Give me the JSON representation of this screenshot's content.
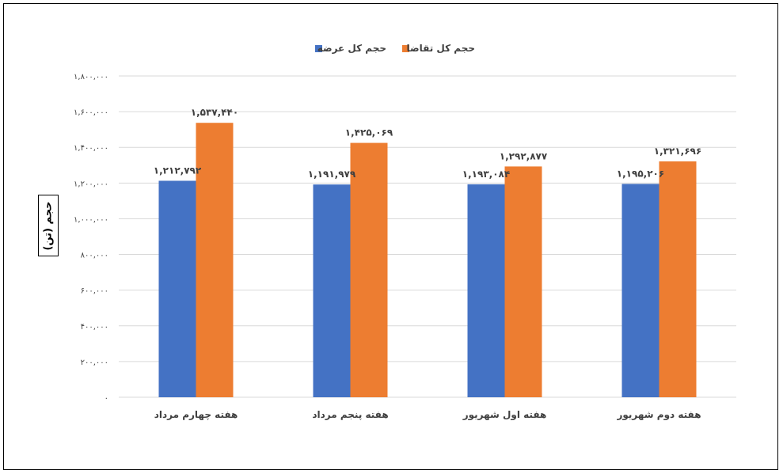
{
  "chart_data": {
    "type": "bar",
    "title": "",
    "xlabel": "",
    "ylabel": "حجم (تن)",
    "ylim": [
      0,
      1800000
    ],
    "yticks": [
      0,
      200000,
      400000,
      600000,
      800000,
      1000000,
      1200000,
      1400000,
      1600000,
      1800000
    ],
    "ytick_labels": [
      "۰",
      "۲۰۰,۰۰۰",
      "۴۰۰,۰۰۰",
      "۶۰۰,۰۰۰",
      "۸۰۰,۰۰۰",
      "۱,۰۰۰,۰۰۰",
      "۱,۲۰۰,۰۰۰",
      "۱,۴۰۰,۰۰۰",
      "۱,۶۰۰,۰۰۰",
      "۱,۸۰۰,۰۰۰"
    ],
    "grid": true,
    "legend_position": "top",
    "categories": [
      "هفته چهارم مرداد",
      "هفته پنجم مرداد",
      "هفته اول شهریور",
      "هفته دوم شهریور"
    ],
    "series": [
      {
        "name": "حجم کل عرضه",
        "color": "#4472C4",
        "values": [
          1212792,
          1191979,
          1193084,
          1195206
        ],
        "labels": [
          "۱,۲۱۲,۷۹۲",
          "۱,۱۹۱,۹۷۹",
          "۱,۱۹۳,۰۸۴",
          "۱,۱۹۵,۲۰۶"
        ]
      },
      {
        "name": "حجم کل تقاضا",
        "color": "#ED7D31",
        "values": [
          1537440,
          1425069,
          1292877,
          1321696
        ],
        "labels": [
          "۱,۵۳۷,۴۴۰",
          "۱,۴۲۵,۰۶۹",
          "۱,۲۹۲,۸۷۷",
          "۱,۳۲۱,۶۹۶"
        ]
      }
    ]
  }
}
